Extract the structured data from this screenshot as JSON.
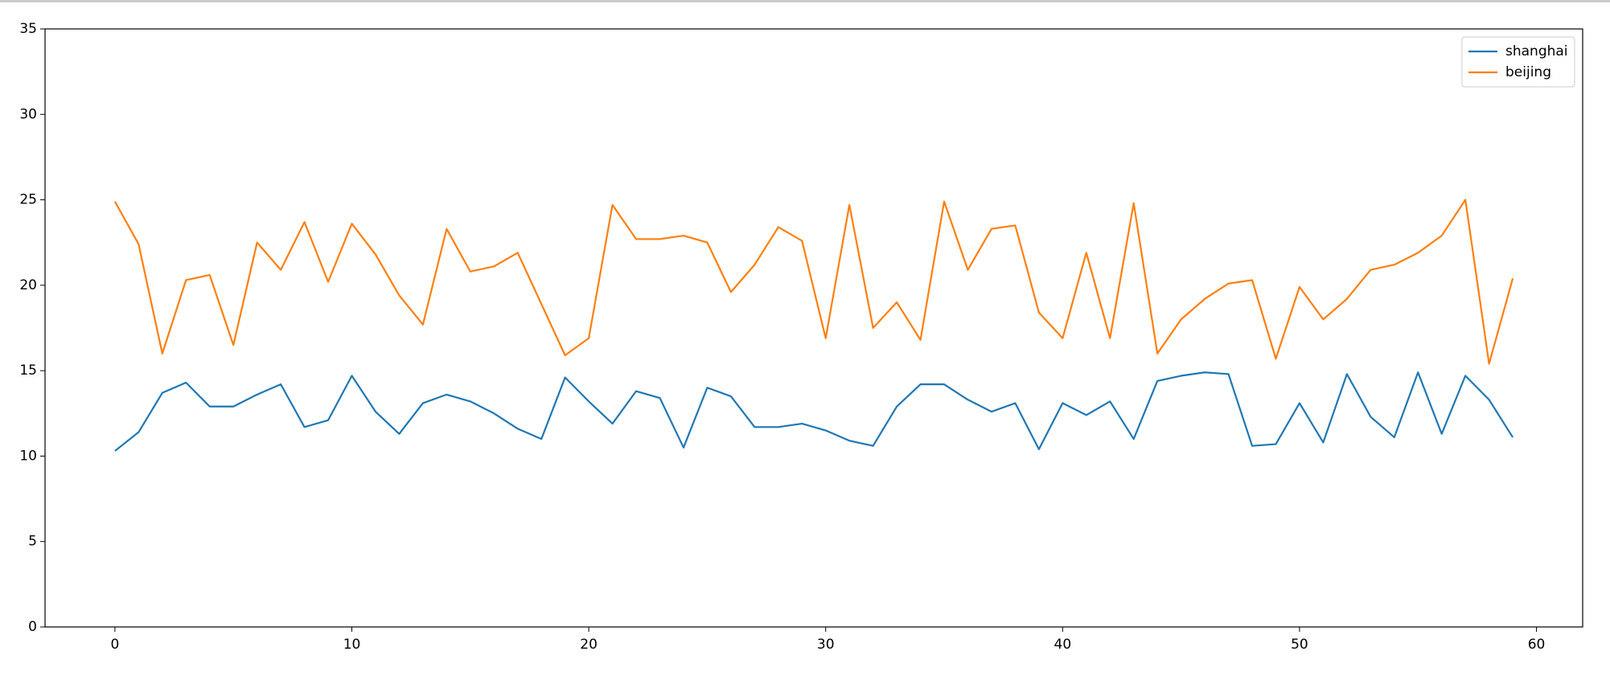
{
  "chart_data": {
    "type": "line",
    "x": [
      0,
      1,
      2,
      3,
      4,
      5,
      6,
      7,
      8,
      9,
      10,
      11,
      12,
      13,
      14,
      15,
      16,
      17,
      18,
      19,
      20,
      21,
      22,
      23,
      24,
      25,
      26,
      27,
      28,
      29,
      30,
      31,
      32,
      33,
      34,
      35,
      36,
      37,
      38,
      39,
      40,
      41,
      42,
      43,
      44,
      45,
      46,
      47,
      48,
      49,
      50,
      51,
      52,
      53,
      54,
      55,
      56,
      57,
      58,
      59
    ],
    "series": [
      {
        "name": "shanghai",
        "color": "#1f77b4",
        "values": [
          10.3,
          11.4,
          13.7,
          14.3,
          12.9,
          12.9,
          13.6,
          14.2,
          11.7,
          12.1,
          14.7,
          12.6,
          11.3,
          13.1,
          13.6,
          13.2,
          12.5,
          11.6,
          11.0,
          14.6,
          13.2,
          11.9,
          13.8,
          13.4,
          10.5,
          14.0,
          13.5,
          11.7,
          11.7,
          11.9,
          11.5,
          10.9,
          10.6,
          12.9,
          14.2,
          14.2,
          13.3,
          12.6,
          13.1,
          10.4,
          13.1,
          12.4,
          13.2,
          11.0,
          14.4,
          14.7,
          14.9,
          14.8,
          10.6,
          10.7,
          13.1,
          10.8,
          14.8,
          12.3,
          11.1,
          14.9,
          11.3,
          14.7,
          13.3,
          11.1
        ]
      },
      {
        "name": "beijing",
        "color": "#ff7f0e",
        "values": [
          24.9,
          22.4,
          16.0,
          20.3,
          20.6,
          16.5,
          22.5,
          20.9,
          23.7,
          20.2,
          23.6,
          21.8,
          19.4,
          17.7,
          23.3,
          20.8,
          21.1,
          21.9,
          18.9,
          15.9,
          16.9,
          24.7,
          22.7,
          22.7,
          22.9,
          22.5,
          19.6,
          21.2,
          23.4,
          22.6,
          16.9,
          24.7,
          17.5,
          19.0,
          16.8,
          24.9,
          20.9,
          23.3,
          23.5,
          18.4,
          16.9,
          21.9,
          16.9,
          24.8,
          16.0,
          18.0,
          19.2,
          20.1,
          20.3,
          15.7,
          19.9,
          18.0,
          19.2,
          20.9,
          21.2,
          21.9,
          22.9,
          25.0,
          15.4,
          20.4
        ]
      }
    ],
    "xlim": [
      -2.95,
      61.95
    ],
    "xticks": [
      0,
      10,
      20,
      30,
      40,
      50,
      60
    ],
    "ylim": [
      0,
      35
    ],
    "yticks": [
      0,
      5,
      10,
      15,
      20,
      25,
      30,
      35
    ],
    "legend": "upper right"
  }
}
